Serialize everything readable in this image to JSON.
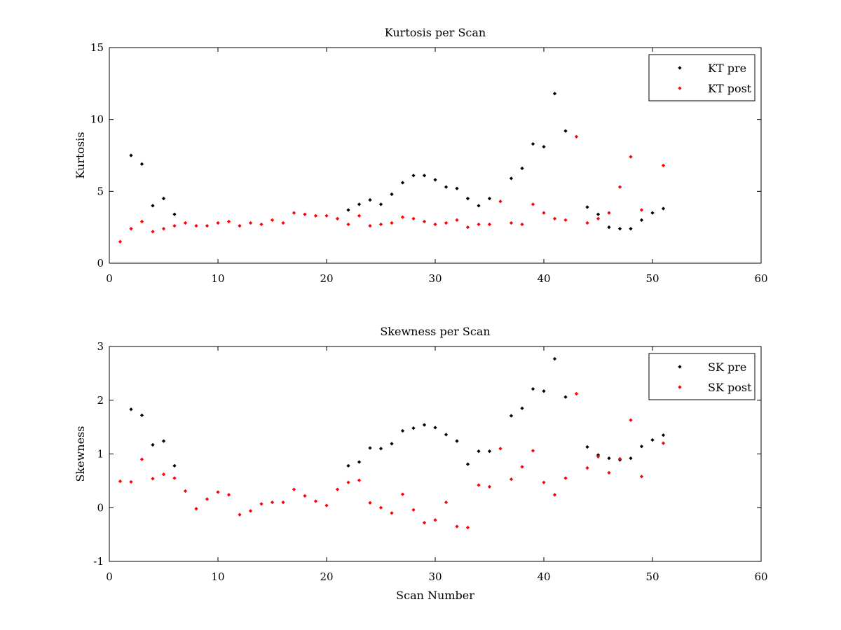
{
  "chart_data": [
    {
      "type": "scatter",
      "title": "Kurtosis per Scan",
      "xlabel": "",
      "ylabel": "Kurtosis",
      "xlim": [
        0,
        60
      ],
      "ylim": [
        0,
        15
      ],
      "xticks": [
        0,
        10,
        20,
        30,
        40,
        50,
        60
      ],
      "yticks": [
        0,
        5,
        10,
        15
      ],
      "legend_position": "top-right",
      "series": [
        {
          "name": "KT pre",
          "color": "#000000",
          "x": [
            2,
            3,
            4,
            5,
            6,
            22,
            23,
            24,
            25,
            26,
            27,
            28,
            29,
            30,
            31,
            32,
            33,
            34,
            35,
            37,
            38,
            39,
            40,
            41,
            42,
            44,
            45,
            46,
            47,
            48,
            49,
            50,
            51
          ],
          "y": [
            7.5,
            6.9,
            4.0,
            4.5,
            3.4,
            3.7,
            4.1,
            4.4,
            4.1,
            4.8,
            5.6,
            6.1,
            6.1,
            5.8,
            5.3,
            5.2,
            4.5,
            4.0,
            4.5,
            5.9,
            6.6,
            8.3,
            8.1,
            11.8,
            9.2,
            3.9,
            3.4,
            2.5,
            2.4,
            2.4,
            3.0,
            3.5,
            3.8
          ]
        },
        {
          "name": "KT post",
          "color": "#ff0000",
          "x": [
            1,
            2,
            3,
            4,
            5,
            6,
            7,
            8,
            9,
            10,
            11,
            12,
            13,
            14,
            15,
            16,
            17,
            18,
            19,
            20,
            21,
            22,
            23,
            24,
            25,
            26,
            27,
            28,
            29,
            30,
            31,
            32,
            33,
            34,
            35,
            36,
            37,
            38,
            39,
            40,
            41,
            42,
            43,
            44,
            45,
            46,
            47,
            48,
            49,
            51
          ],
          "y": [
            1.5,
            2.4,
            2.9,
            2.2,
            2.4,
            2.6,
            2.8,
            2.6,
            2.6,
            2.8,
            2.9,
            2.6,
            2.8,
            2.7,
            3.0,
            2.8,
            3.5,
            3.4,
            3.3,
            3.3,
            3.1,
            2.7,
            3.3,
            2.6,
            2.7,
            2.8,
            3.2,
            3.1,
            2.9,
            2.7,
            2.8,
            3.0,
            2.5,
            2.7,
            2.7,
            4.3,
            2.8,
            2.7,
            4.1,
            3.5,
            3.1,
            3.0,
            8.8,
            2.8,
            3.1,
            3.5,
            5.3,
            7.4,
            3.7,
            6.8
          ]
        }
      ]
    },
    {
      "type": "scatter",
      "title": "Skewness per Scan",
      "xlabel": "Scan Number",
      "ylabel": "Skewness",
      "xlim": [
        0,
        60
      ],
      "ylim": [
        -1,
        3
      ],
      "xticks": [
        0,
        10,
        20,
        30,
        40,
        50,
        60
      ],
      "yticks": [
        -1,
        0,
        1,
        2,
        3
      ],
      "legend_position": "top-right",
      "series": [
        {
          "name": "SK pre",
          "color": "#000000",
          "x": [
            2,
            3,
            4,
            5,
            6,
            22,
            23,
            24,
            25,
            26,
            27,
            28,
            29,
            30,
            31,
            32,
            33,
            34,
            35,
            37,
            38,
            39,
            40,
            41,
            42,
            44,
            45,
            46,
            47,
            48,
            49,
            50,
            51
          ],
          "y": [
            1.83,
            1.72,
            1.17,
            1.24,
            0.78,
            0.78,
            0.85,
            1.11,
            1.1,
            1.19,
            1.43,
            1.48,
            1.54,
            1.49,
            1.36,
            1.24,
            0.81,
            1.05,
            1.05,
            1.71,
            1.85,
            2.21,
            2.17,
            2.77,
            2.06,
            1.13,
            0.98,
            0.92,
            0.89,
            0.92,
            1.14,
            1.26,
            1.35
          ]
        },
        {
          "name": "SK post",
          "color": "#ff0000",
          "x": [
            1,
            2,
            3,
            4,
            5,
            6,
            7,
            8,
            9,
            10,
            11,
            12,
            13,
            14,
            15,
            16,
            17,
            18,
            19,
            20,
            21,
            22,
            23,
            24,
            25,
            26,
            27,
            28,
            29,
            30,
            31,
            32,
            33,
            34,
            35,
            36,
            37,
            38,
            39,
            40,
            41,
            42,
            43,
            44,
            45,
            46,
            47,
            48,
            49,
            51
          ],
          "y": [
            0.49,
            0.48,
            0.9,
            0.54,
            0.62,
            0.55,
            0.31,
            -0.02,
            0.16,
            0.29,
            0.24,
            -0.13,
            -0.06,
            0.07,
            0.1,
            0.1,
            0.34,
            0.22,
            0.12,
            0.04,
            0.34,
            0.47,
            0.51,
            0.09,
            0.0,
            -0.1,
            0.25,
            -0.04,
            -0.28,
            -0.23,
            0.1,
            -0.35,
            -0.37,
            0.42,
            0.39,
            1.1,
            0.53,
            0.76,
            1.06,
            0.47,
            0.24,
            0.55,
            2.12,
            0.74,
            0.95,
            0.65,
            0.91,
            1.63,
            0.58,
            1.2
          ]
        }
      ]
    }
  ]
}
